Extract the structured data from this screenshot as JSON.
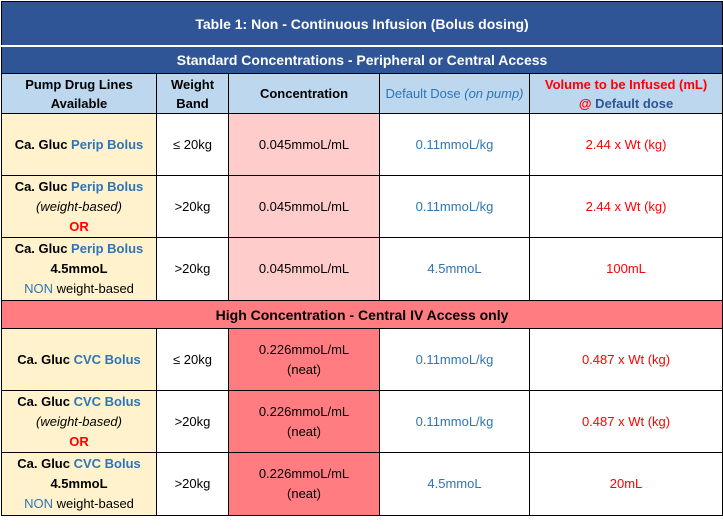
{
  "table": {
    "title": "Table 1: Non - Continuous Infusion (Bolus dosing)",
    "standard_section": "Standard Concentrations - Peripheral or Central Access",
    "high_section": "High Concentration - Central IV Access only",
    "headers": {
      "pump_line1": "Pump Drug Lines",
      "pump_line2": "Available",
      "weight_line1": "Weight",
      "weight_line2": "Band",
      "concentration": "Concentration",
      "default_dose_main": "Default Dose ",
      "default_dose_em": "(on pump)",
      "volume_red": "Volume to be Infused (mL)",
      "volume_at": "@",
      "volume_blue": " Default dose"
    },
    "standard_rows": [
      {
        "drug_a": "Ca. Gluc ",
        "drug_b": "Perip Bolus",
        "weight": "≤ 20kg",
        "conc1": "0.045mmoL/mL",
        "dose": "0.11mmoL/kg",
        "volume": "2.44 x Wt (kg)"
      },
      {
        "drug_a": "Ca. Gluc ",
        "drug_b": "Perip Bolus",
        "sub": "(weight-based)",
        "or": "OR",
        "weight": ">20kg",
        "conc1": "0.045mmoL/mL",
        "dose": "0.11mmoL/kg",
        "volume": "2.44 x Wt (kg)"
      },
      {
        "drug_a": "Ca. Gluc ",
        "drug_b": "Perip Bolus",
        "amount": "4.5mmoL",
        "non": "NON",
        "wb": " weight-based",
        "weight": ">20kg",
        "conc1": "0.045mmoL/mL",
        "dose": "4.5mmoL",
        "volume": "100mL"
      }
    ],
    "high_rows": [
      {
        "drug_a": "Ca. Gluc ",
        "drug_b": "CVC Bolus",
        "weight": "≤ 20kg",
        "conc1": "0.226mmoL/mL",
        "conc2": "(neat)",
        "dose": "0.11mmoL/kg",
        "volume": "0.487 x Wt (kg)"
      },
      {
        "drug_a": "Ca. Gluc ",
        "drug_b": "CVC Bolus",
        "sub": "(weight-based)",
        "or": "OR",
        "weight": ">20kg",
        "conc1": "0.226mmoL/mL",
        "conc2": "(neat)",
        "dose": "0.11mmoL/kg",
        "volume": "0.487 x Wt (kg)"
      },
      {
        "drug_a": "Ca. Gluc ",
        "drug_b": "CVC Bolus",
        "amount": "4.5mmoL",
        "non": "NON",
        "wb": " weight-based",
        "weight": ">20kg",
        "conc1": "0.226mmoL/mL",
        "conc2": "(neat)",
        "dose": "4.5mmoL",
        "volume": "20mL"
      }
    ]
  },
  "colors": {
    "title_bg": "#2F5597",
    "header_bg": "#BDD7EE",
    "drug_bg": "#FFF2CC",
    "std_conc_bg": "#FFCCCC",
    "high_bg": "#FF7C80",
    "blue_text": "#2E75B6",
    "red_text": "#FF0000"
  }
}
